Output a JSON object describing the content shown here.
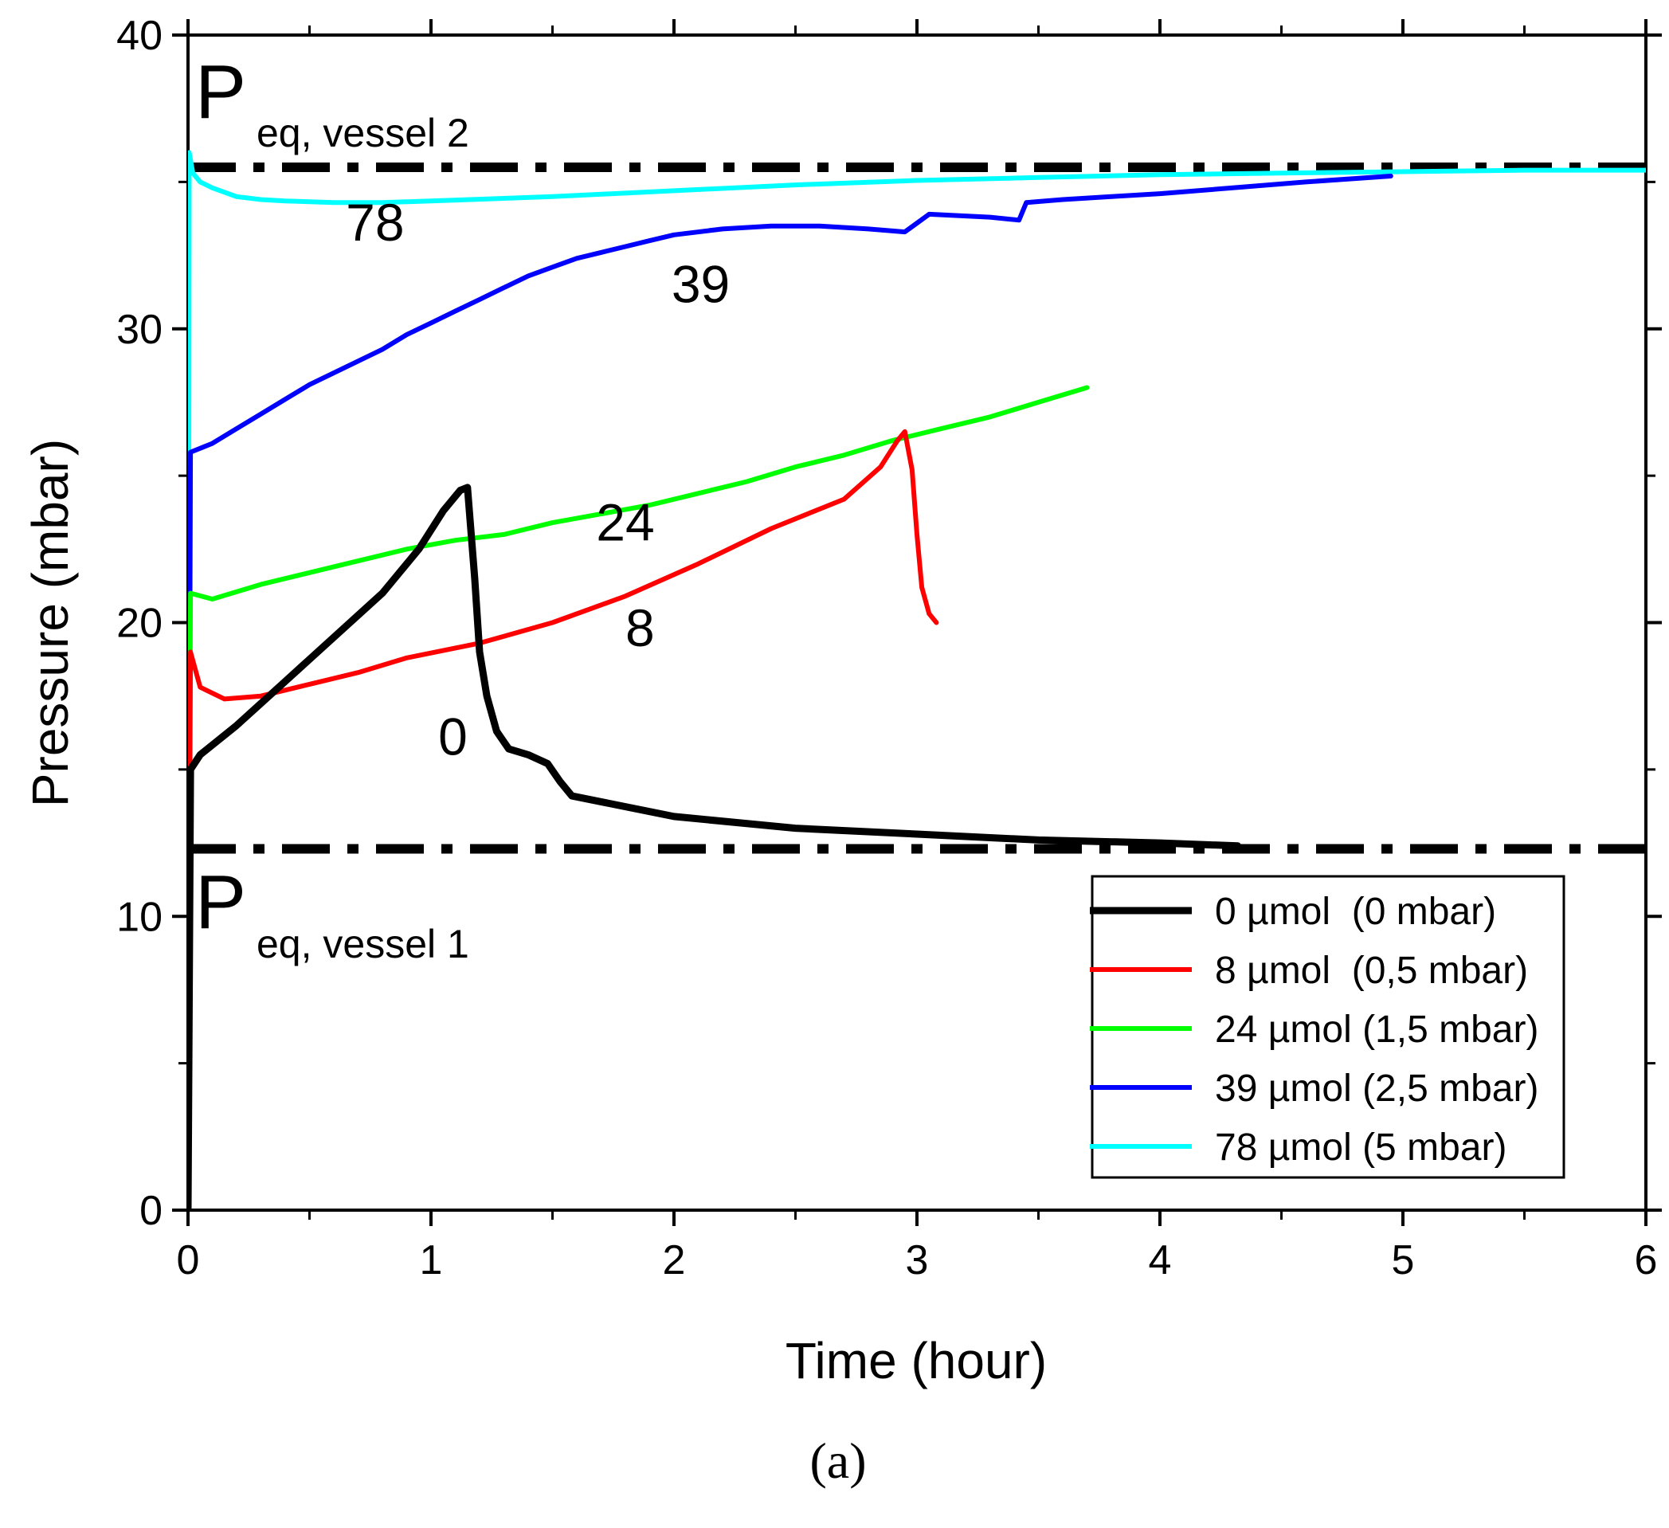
{
  "chart_data": {
    "type": "line",
    "xlabel": "Time (hour)",
    "ylabel": "Pressure (mbar)",
    "xlim": [
      0,
      6
    ],
    "ylim": [
      0,
      40
    ],
    "xticks": [
      "0",
      "1",
      "2",
      "3",
      "4",
      "5",
      "6"
    ],
    "yticks": [
      "0",
      "10",
      "20",
      "30",
      "40"
    ],
    "grid": false,
    "legend_position": "bottom-right",
    "reference_lines": [
      {
        "y": 35.5,
        "label_main": "P",
        "label_sub": "eq, vessel 2",
        "style": "dash-dot"
      },
      {
        "y": 12.3,
        "label_main": "P",
        "label_sub": "eq, vessel 1",
        "style": "dash-dot"
      }
    ],
    "series": [
      {
        "name": "0 µmol  (0 mbar)",
        "color": "#000000",
        "curve_label": "0",
        "x": [
          0,
          0.01,
          0.05,
          0.2,
          0.4,
          0.6,
          0.8,
          0.95,
          1.05,
          1.12,
          1.15,
          1.18,
          1.2,
          1.23,
          1.27,
          1.32,
          1.4,
          1.48,
          1.53,
          1.58,
          1.7,
          2.0,
          2.5,
          3.0,
          3.5,
          4.0,
          4.32
        ],
        "y": [
          0,
          15.0,
          15.5,
          16.5,
          18.0,
          19.5,
          21.0,
          22.5,
          23.8,
          24.5,
          24.6,
          21.5,
          19.0,
          17.5,
          16.3,
          15.7,
          15.5,
          15.2,
          14.6,
          14.1,
          13.9,
          13.4,
          13.0,
          12.8,
          12.6,
          12.5,
          12.4
        ]
      },
      {
        "name": "8 µmol  (0,5 mbar)",
        "color": "#ff0000",
        "curve_label": "8",
        "x": [
          0,
          0.01,
          0.05,
          0.15,
          0.3,
          0.5,
          0.7,
          0.9,
          1.2,
          1.5,
          1.8,
          2.1,
          2.4,
          2.7,
          2.85,
          2.92,
          2.95,
          2.98,
          3.0,
          3.02,
          3.05,
          3.08
        ],
        "y": [
          0,
          19.0,
          17.8,
          17.4,
          17.5,
          17.9,
          18.3,
          18.8,
          19.3,
          20.0,
          20.9,
          22.0,
          23.2,
          24.2,
          25.3,
          26.2,
          26.5,
          25.2,
          23.0,
          21.2,
          20.3,
          20.0
        ]
      },
      {
        "name": "24 µmol (1,5 mbar)",
        "color": "#00ff00",
        "curve_label": "24",
        "x": [
          0,
          0.01,
          0.1,
          0.3,
          0.5,
          0.7,
          0.9,
          1.1,
          1.3,
          1.5,
          1.7,
          1.9,
          2.1,
          2.3,
          2.5,
          2.7,
          2.9,
          3.1,
          3.3,
          3.5,
          3.7
        ],
        "y": [
          0,
          21.0,
          20.8,
          21.3,
          21.7,
          22.1,
          22.5,
          22.8,
          23.0,
          23.4,
          23.7,
          24.0,
          24.4,
          24.8,
          25.3,
          25.7,
          26.2,
          26.6,
          27.0,
          27.5,
          28.0
        ]
      },
      {
        "name": "39 µmol (2,5 mbar)",
        "color": "#0000ff",
        "curve_label": "39",
        "x": [
          0,
          0.01,
          0.1,
          0.2,
          0.3,
          0.4,
          0.5,
          0.6,
          0.7,
          0.8,
          0.9,
          1.0,
          1.1,
          1.2,
          1.3,
          1.4,
          1.5,
          1.6,
          1.7,
          1.8,
          1.9,
          2.0,
          2.2,
          2.4,
          2.6,
          2.8,
          2.95,
          3.05,
          3.3,
          3.42,
          3.45,
          3.6,
          3.8,
          4.0,
          4.3,
          4.6,
          4.95
        ],
        "y": [
          0,
          25.8,
          26.1,
          26.6,
          27.1,
          27.6,
          28.1,
          28.5,
          28.9,
          29.3,
          29.8,
          30.2,
          30.6,
          31.0,
          31.4,
          31.8,
          32.1,
          32.4,
          32.6,
          32.8,
          33.0,
          33.2,
          33.4,
          33.5,
          33.5,
          33.4,
          33.3,
          33.9,
          33.8,
          33.7,
          34.3,
          34.4,
          34.5,
          34.6,
          34.8,
          35.0,
          35.2
        ]
      },
      {
        "name": "78 µmol (5 mbar)",
        "color": "#00ffff",
        "curve_label": "78",
        "x": [
          0,
          0.005,
          0.02,
          0.05,
          0.1,
          0.2,
          0.3,
          0.4,
          0.6,
          0.8,
          1.0,
          1.5,
          2.0,
          2.5,
          3.0,
          3.5,
          4.0,
          4.5,
          5.0,
          5.5,
          6.0
        ],
        "y": [
          0,
          36.0,
          35.3,
          35.0,
          34.8,
          34.5,
          34.4,
          34.35,
          34.3,
          34.3,
          34.35,
          34.5,
          34.7,
          34.9,
          35.05,
          35.15,
          35.25,
          35.3,
          35.35,
          35.4,
          35.4
        ]
      }
    ],
    "curve_label_positions": [
      {
        "text": "0",
        "x": 1.09,
        "y": 15.5
      },
      {
        "text": "8",
        "x": 1.86,
        "y": 19.2
      },
      {
        "text": "24",
        "x": 1.8,
        "y": 22.8
      },
      {
        "text": "39",
        "x": 2.11,
        "y": 30.9
      },
      {
        "text": "78",
        "x": 0.77,
        "y": 33.0
      }
    ],
    "caption": "(a)"
  }
}
